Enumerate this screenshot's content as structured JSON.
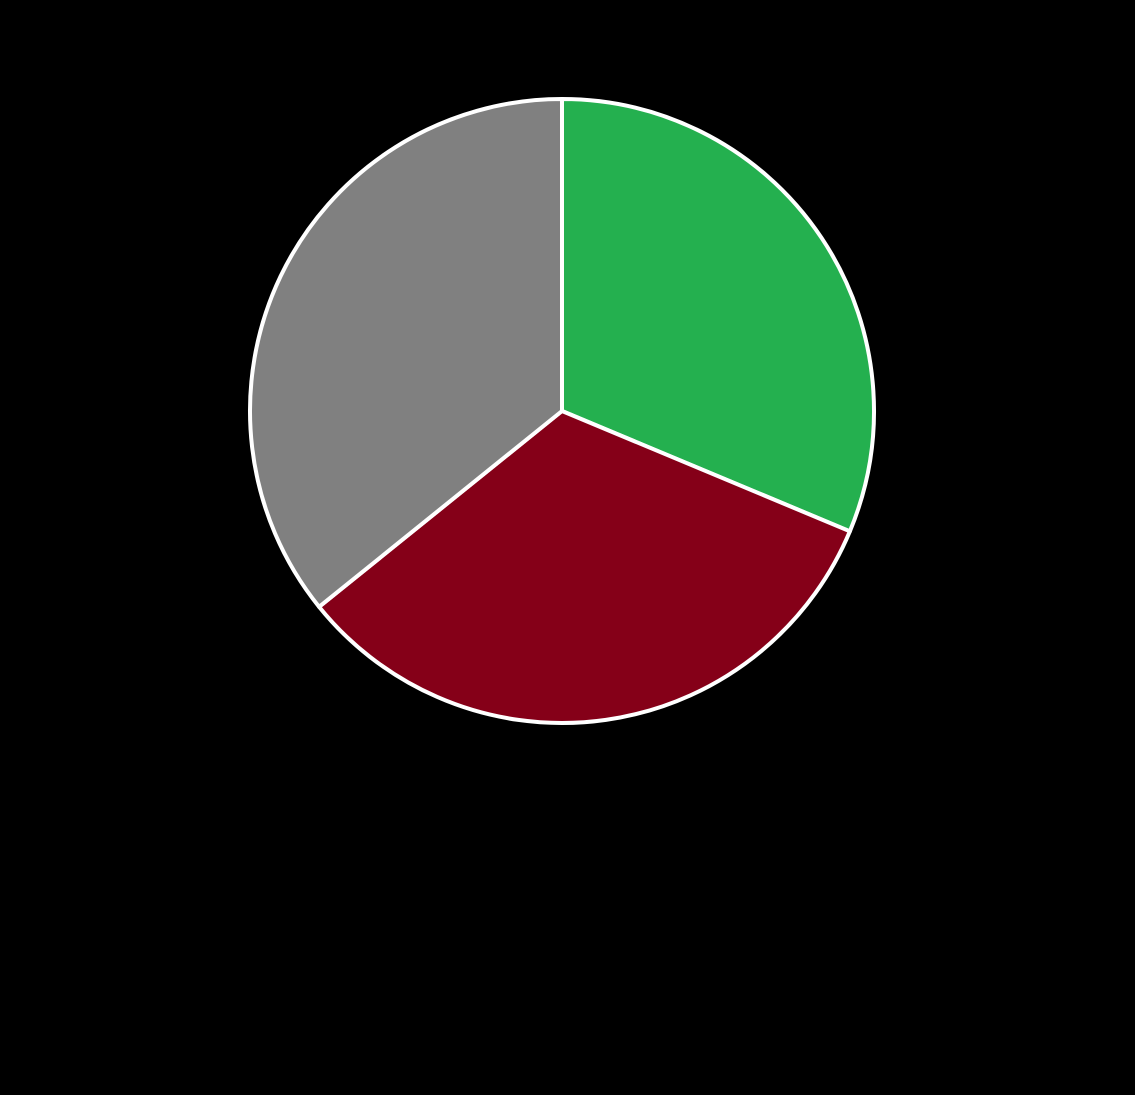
{
  "chart_data": {
    "type": "pie",
    "title": "",
    "start_angle": "12 o'clock",
    "direction": "clockwise",
    "slice_border_color": "#FFFFFF",
    "background_color": "#000000",
    "slices": [
      {
        "value": 31.3,
        "color": "#24B04F"
      },
      {
        "value": 32.9,
        "color": "#850018"
      },
      {
        "value": 35.8,
        "color": "#808080"
      }
    ]
  }
}
